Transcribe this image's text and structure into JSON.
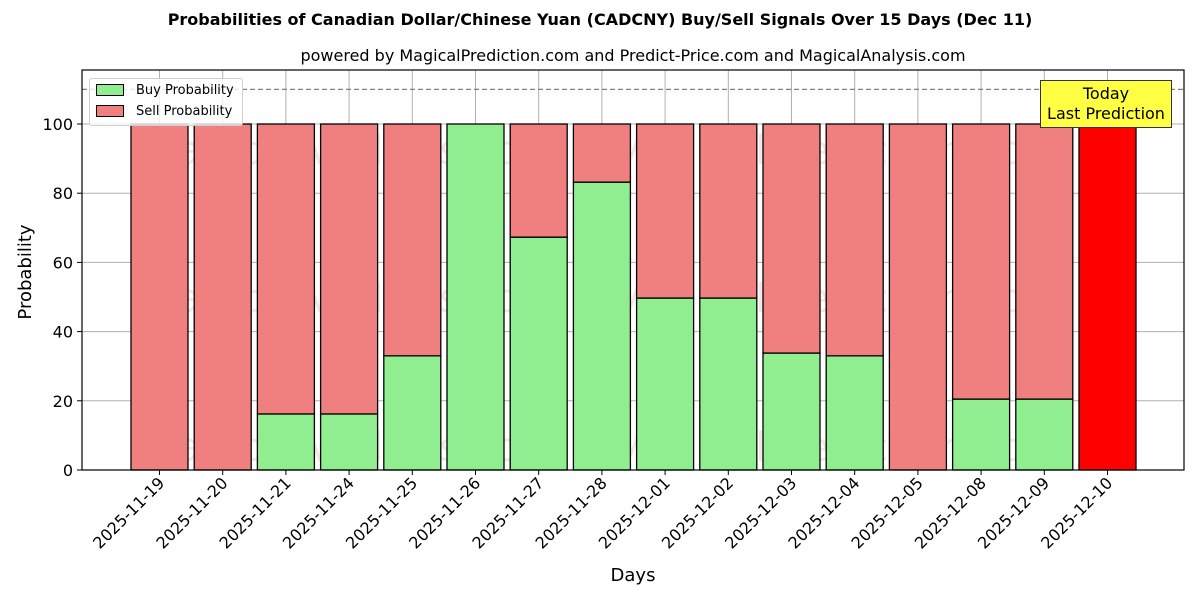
{
  "header": {
    "title": "Probabilities of Canadian Dollar/Chinese Yuan (CADCNY) Buy/Sell Signals Over 15 Days (Dec 11)",
    "subtitle": "powered by MagicalPrediction.com and Predict-Price.com and MagicalAnalysis.com"
  },
  "legend": {
    "buy_label": "Buy Probability",
    "sell_label": "Sell Probability"
  },
  "annotation": {
    "line1": "Today",
    "line2": "Last Prediction"
  },
  "axes": {
    "xlabel": "Days",
    "ylabel": "Probability",
    "yticks": [
      "0",
      "20",
      "40",
      "60",
      "80",
      "100"
    ]
  },
  "watermarks": [
    "MagicalAnalysis.com",
    "MagicalPrediction.com"
  ],
  "colors": {
    "buy": "#90ee90",
    "sell": "#f08080",
    "today": "#ff0000",
    "annotation_bg": "#ffff44"
  },
  "chart_data": {
    "type": "bar",
    "stacked": true,
    "title": "Probabilities of Canadian Dollar/Chinese Yuan (CADCNY) Buy/Sell Signals Over 15 Days (Dec 11)",
    "subtitle": "powered by MagicalPrediction.com and Predict-Price.com and MagicalAnalysis.com",
    "xlabel": "Days",
    "ylabel": "Probability",
    "ylim": [
      0,
      115
    ],
    "yticks": [
      0,
      20,
      40,
      60,
      80,
      100
    ],
    "reference_line": {
      "y": 110,
      "style": "dashed",
      "color": "#808080"
    },
    "grid": true,
    "legend_position": "upper left",
    "categories": [
      "2025-11-19",
      "2025-11-20",
      "2025-11-21",
      "2025-11-24",
      "2025-11-25",
      "2025-11-26",
      "2025-11-27",
      "2025-11-28",
      "2025-12-01",
      "2025-12-02",
      "2025-12-03",
      "2025-12-04",
      "2025-12-05",
      "2025-12-08",
      "2025-12-09",
      "2025-12-10"
    ],
    "series": [
      {
        "name": "Buy Probability",
        "color": "#90ee90",
        "values": [
          0,
          0,
          16.2,
          16.2,
          33.0,
          100,
          67.3,
          83.2,
          49.7,
          49.7,
          33.8,
          33.0,
          0,
          20.5,
          20.5,
          0
        ]
      },
      {
        "name": "Sell Probability",
        "color": "#f08080",
        "values": [
          100,
          100,
          83.8,
          83.8,
          67.0,
          0,
          32.7,
          16.8,
          50.3,
          50.3,
          66.2,
          67.0,
          100,
          79.5,
          79.5,
          100
        ]
      }
    ],
    "highlight": {
      "category": "2025-12-10",
      "color": "#ff0000",
      "label": "Today\nLast Prediction"
    }
  }
}
